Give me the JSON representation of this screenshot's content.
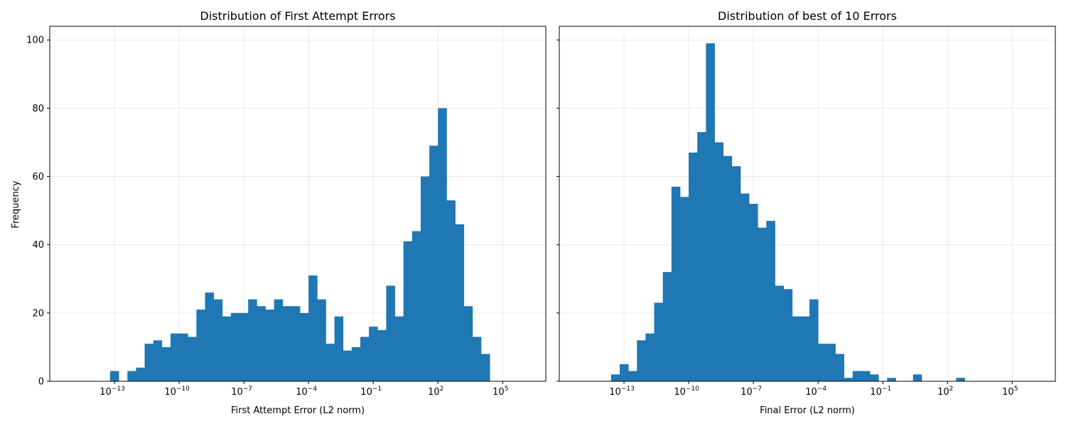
{
  "chart_data": [
    {
      "type": "bar",
      "title": "Distribution of First Attempt Errors",
      "xlabel": "First Attempt Error (L2 norm)",
      "ylabel": "Frequency",
      "x_scale": "log",
      "xlim": [
        1e-16,
        10000000.0
      ],
      "ylim": [
        0,
        104
      ],
      "x_ticks": [
        {
          "value": 1e-13,
          "base": "10",
          "exp": "−13"
        },
        {
          "value": 1e-10,
          "base": "10",
          "exp": "−10"
        },
        {
          "value": 1e-07,
          "base": "10",
          "exp": "−7"
        },
        {
          "value": 0.0001,
          "base": "10",
          "exp": "−4"
        },
        {
          "value": 0.1,
          "base": "10",
          "exp": "−1"
        },
        {
          "value": 100.0,
          "base": "10",
          "exp": "2"
        },
        {
          "value": 100000.0,
          "base": "10",
          "exp": "5"
        }
      ],
      "y_ticks": [
        "0",
        "20",
        "40",
        "60",
        "80",
        "100"
      ],
      "bin_edges_log10": [
        -13.6,
        -13.2,
        -12.8,
        -12.4,
        -12.0,
        -11.6,
        -11.2,
        -10.8,
        -10.4,
        -10.0,
        -9.6,
        -9.2,
        -8.8,
        -8.4,
        -8.0,
        -7.6,
        -7.2,
        -6.8,
        -6.4,
        -6.0,
        -5.6,
        -5.2,
        -4.8,
        -4.4,
        -4.0,
        -3.6,
        -3.2,
        -2.8,
        -2.4,
        -2.0,
        -1.6,
        -1.2,
        -0.8,
        -0.4,
        0.0,
        0.4,
        0.8,
        1.2,
        1.6,
        2.0,
        2.4,
        2.8,
        3.2,
        3.6,
        4.0,
        4.4,
        4.8,
        5.2,
        5.6
      ],
      "values": [
        0,
        3,
        0,
        3,
        4,
        11,
        12,
        10,
        14,
        14,
        13,
        21,
        26,
        24,
        19,
        20,
        20,
        24,
        22,
        21,
        24,
        22,
        22,
        20,
        31,
        24,
        11,
        19,
        9,
        10,
        13,
        16,
        15,
        28,
        19,
        41,
        44,
        60,
        69,
        80,
        53,
        46,
        22,
        13,
        8,
        0,
        0,
        0
      ],
      "grid": true,
      "color": "#1f77b4"
    },
    {
      "type": "bar",
      "title": "Distribution of best of 10 Errors",
      "xlabel": "Final Error (L2 norm)",
      "ylabel": "",
      "x_scale": "log",
      "xlim": [
        1e-16,
        10000000.0
      ],
      "ylim": [
        0,
        104
      ],
      "x_ticks": [
        {
          "value": 1e-13,
          "base": "10",
          "exp": "−13"
        },
        {
          "value": 1e-10,
          "base": "10",
          "exp": "−10"
        },
        {
          "value": 1e-07,
          "base": "10",
          "exp": "−7"
        },
        {
          "value": 0.0001,
          "base": "10",
          "exp": "−4"
        },
        {
          "value": 0.1,
          "base": "10",
          "exp": "−1"
        },
        {
          "value": 100.0,
          "base": "10",
          "exp": "2"
        },
        {
          "value": 100000.0,
          "base": "10",
          "exp": "5"
        }
      ],
      "y_ticks": [
        "0",
        "20",
        "40",
        "60",
        "80",
        "100"
      ],
      "bin_edges_log10": [
        -13.6,
        -13.2,
        -12.8,
        -12.4,
        -12.0,
        -11.6,
        -11.2,
        -10.8,
        -10.4,
        -10.0,
        -9.6,
        -9.2,
        -8.8,
        -8.4,
        -8.0,
        -7.6,
        -7.2,
        -6.8,
        -6.4,
        -6.0,
        -5.6,
        -5.2,
        -4.8,
        -4.4,
        -4.0,
        -3.6,
        -3.2,
        -2.8,
        -2.4,
        -2.0,
        -1.6,
        -1.2,
        -0.8,
        -0.4,
        0.0,
        0.4,
        0.8,
        1.2,
        1.6,
        2.0,
        2.4,
        2.8,
        3.2,
        3.6,
        4.0,
        4.4,
        4.8,
        5.2,
        5.6
      ],
      "values": [
        2,
        5,
        3,
        12,
        14,
        23,
        32,
        57,
        54,
        67,
        73,
        99,
        70,
        66,
        63,
        55,
        52,
        45,
        47,
        28,
        27,
        19,
        19,
        24,
        11,
        11,
        8,
        1,
        3,
        3,
        2,
        0,
        1,
        0,
        0,
        2,
        0,
        0,
        0,
        0,
        1,
        0,
        0,
        0,
        0,
        0,
        0,
        0
      ],
      "grid": true,
      "color": "#1f77b4"
    }
  ]
}
